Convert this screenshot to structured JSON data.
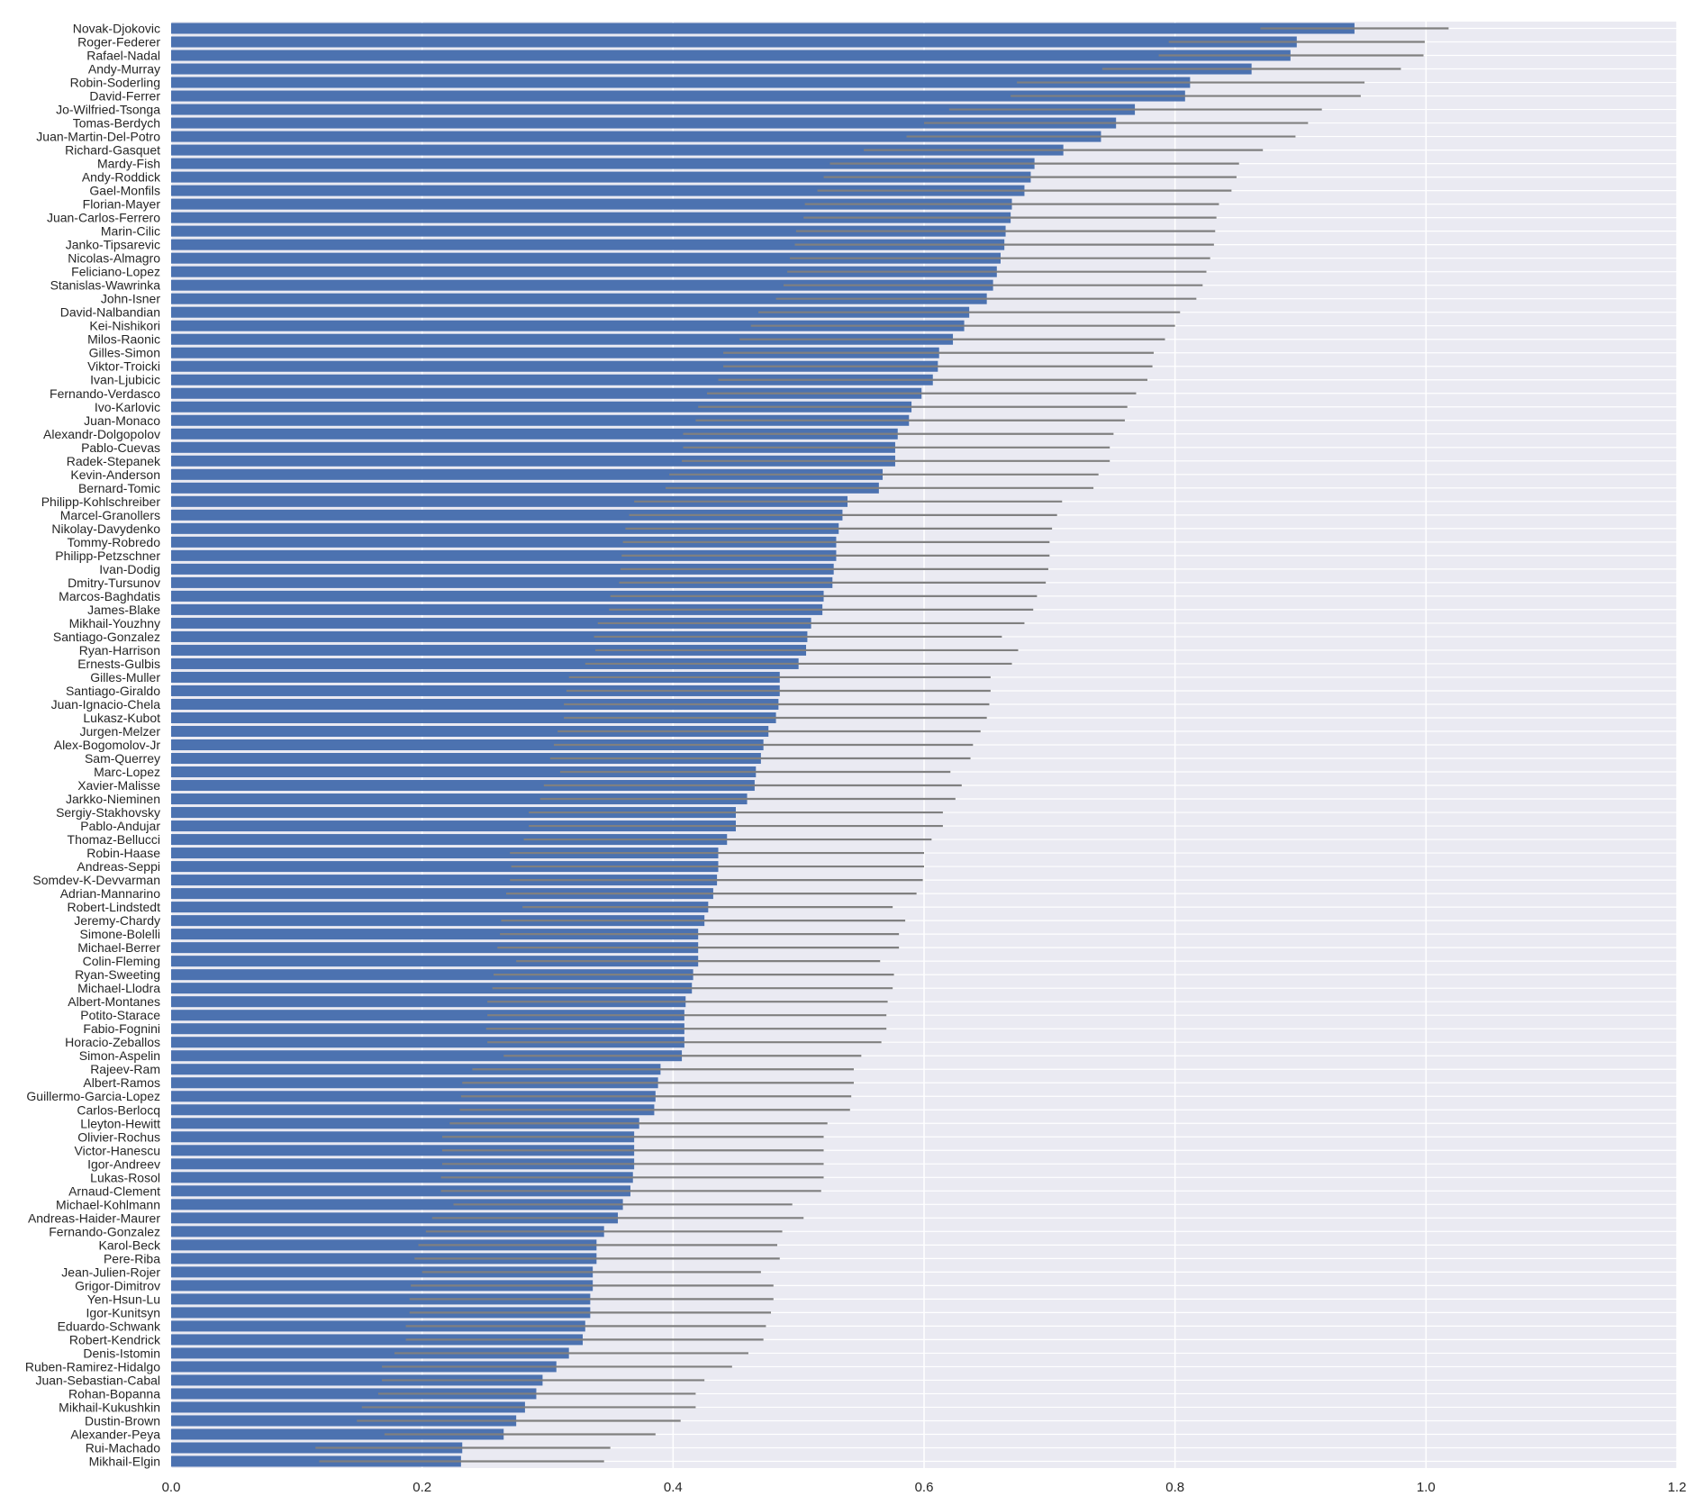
{
  "chart_data": {
    "type": "bar",
    "orientation": "horizontal",
    "title": "",
    "xlabel": "",
    "ylabel": "",
    "xlim": [
      0.0,
      1.2
    ],
    "xticks": [
      "0.0",
      "0.2",
      "0.4",
      "0.6",
      "0.8",
      "1.0",
      "1.2"
    ],
    "grid": true,
    "legend": "none",
    "colors": {
      "bar": "#4c72b0",
      "errorbar": "#808080",
      "background": "#eaeaf2",
      "grid": "#ffffff"
    },
    "categories": [
      "Novak-Djokovic",
      "Roger-Federer",
      "Rafael-Nadal",
      "Andy-Murray",
      "Robin-Soderling",
      "David-Ferrer",
      "Jo-Wilfried-Tsonga",
      "Tomas-Berdych",
      "Juan-Martin-Del-Potro",
      "Richard-Gasquet",
      "Mardy-Fish",
      "Andy-Roddick",
      "Gael-Monfils",
      "Florian-Mayer",
      "Juan-Carlos-Ferrero",
      "Marin-Cilic",
      "Janko-Tipsarevic",
      "Nicolas-Almagro",
      "Feliciano-Lopez",
      "Stanislas-Wawrinka",
      "John-Isner",
      "David-Nalbandian",
      "Kei-Nishikori",
      "Milos-Raonic",
      "Gilles-Simon",
      "Viktor-Troicki",
      "Ivan-Ljubicic",
      "Fernando-Verdasco",
      "Ivo-Karlovic",
      "Juan-Monaco",
      "Alexandr-Dolgopolov",
      "Pablo-Cuevas",
      "Radek-Stepanek",
      "Kevin-Anderson",
      "Bernard-Tomic",
      "Philipp-Kohlschreiber",
      "Marcel-Granollers",
      "Nikolay-Davydenko",
      "Tommy-Robredo",
      "Philipp-Petzschner",
      "Ivan-Dodig",
      "Dmitry-Tursunov",
      "Marcos-Baghdatis",
      "James-Blake",
      "Mikhail-Youzhny",
      "Santiago-Gonzalez",
      "Ryan-Harrison",
      "Ernests-Gulbis",
      "Gilles-Muller",
      "Santiago-Giraldo",
      "Juan-Ignacio-Chela",
      "Lukasz-Kubot",
      "Jurgen-Melzer",
      "Alex-Bogomolov-Jr",
      "Sam-Querrey",
      "Marc-Lopez",
      "Xavier-Malisse",
      "Jarkko-Nieminen",
      "Sergiy-Stakhovsky",
      "Pablo-Andujar",
      "Thomaz-Bellucci",
      "Robin-Haase",
      "Andreas-Seppi",
      "Somdev-K-Devvarman",
      "Adrian-Mannarino",
      "Robert-Lindstedt",
      "Jeremy-Chardy",
      "Simone-Bolelli",
      "Michael-Berrer",
      "Colin-Fleming",
      "Ryan-Sweeting",
      "Michael-Llodra",
      "Albert-Montanes",
      "Potito-Starace",
      "Fabio-Fognini",
      "Horacio-Zeballos",
      "Simon-Aspelin",
      "Rajeev-Ram",
      "Albert-Ramos",
      "Guillermo-Garcia-Lopez",
      "Carlos-Berlocq",
      "Lleyton-Hewitt",
      "Olivier-Rochus",
      "Victor-Hanescu",
      "Igor-Andreev",
      "Lukas-Rosol",
      "Arnaud-Clement",
      "Michael-Kohlmann",
      "Andreas-Haider-Maurer",
      "Fernando-Gonzalez",
      "Karol-Beck",
      "Pere-Riba",
      "Jean-Julien-Rojer",
      "Grigor-Dimitrov",
      "Yen-Hsun-Lu",
      "Igor-Kunitsyn",
      "Eduardo-Schwank",
      "Robert-Kendrick",
      "Denis-Istomin",
      "Ruben-Ramirez-Hidalgo",
      "Juan-Sebastian-Cabal",
      "Rohan-Bopanna",
      "Mikhail-Kukushkin",
      "Dustin-Brown",
      "Alexander-Peya",
      "Rui-Machado",
      "Mikhail-Elgin"
    ],
    "values": [
      0.943,
      0.897,
      0.892,
      0.861,
      0.812,
      0.808,
      0.768,
      0.753,
      0.741,
      0.711,
      0.688,
      0.685,
      0.68,
      0.67,
      0.669,
      0.665,
      0.664,
      0.661,
      0.658,
      0.655,
      0.65,
      0.636,
      0.632,
      0.623,
      0.612,
      0.611,
      0.607,
      0.598,
      0.59,
      0.588,
      0.579,
      0.577,
      0.577,
      0.567,
      0.564,
      0.539,
      0.535,
      0.532,
      0.53,
      0.53,
      0.528,
      0.527,
      0.52,
      0.519,
      0.51,
      0.507,
      0.506,
      0.5,
      0.485,
      0.485,
      0.484,
      0.482,
      0.476,
      0.472,
      0.47,
      0.466,
      0.465,
      0.459,
      0.45,
      0.45,
      0.443,
      0.436,
      0.436,
      0.435,
      0.432,
      0.428,
      0.425,
      0.42,
      0.42,
      0.42,
      0.416,
      0.415,
      0.41,
      0.409,
      0.409,
      0.409,
      0.407,
      0.39,
      0.388,
      0.386,
      0.385,
      0.373,
      0.369,
      0.369,
      0.369,
      0.368,
      0.366,
      0.36,
      0.356,
      0.345,
      0.339,
      0.339,
      0.336,
      0.336,
      0.334,
      0.334,
      0.33,
      0.328,
      0.317,
      0.307,
      0.296,
      0.291,
      0.282,
      0.275,
      0.265,
      0.232,
      0.231
    ],
    "error_low": [
      0.868,
      0.795,
      0.787,
      0.742,
      0.674,
      0.669,
      0.62,
      0.6,
      0.586,
      0.552,
      0.525,
      0.52,
      0.515,
      0.505,
      0.504,
      0.498,
      0.497,
      0.493,
      0.491,
      0.488,
      0.482,
      0.468,
      0.462,
      0.453,
      0.44,
      0.44,
      0.436,
      0.427,
      0.42,
      0.418,
      0.408,
      0.408,
      0.407,
      0.397,
      0.394,
      0.369,
      0.365,
      0.362,
      0.36,
      0.359,
      0.358,
      0.357,
      0.35,
      0.349,
      0.34,
      0.337,
      0.338,
      0.33,
      0.317,
      0.315,
      0.313,
      0.313,
      0.308,
      0.305,
      0.302,
      0.31,
      0.297,
      0.294,
      0.285,
      0.285,
      0.281,
      0.27,
      0.271,
      0.27,
      0.267,
      0.28,
      0.263,
      0.262,
      0.26,
      0.275,
      0.257,
      0.256,
      0.252,
      0.252,
      0.251,
      0.252,
      0.265,
      0.24,
      0.232,
      0.231,
      0.23,
      0.222,
      0.216,
      0.216,
      0.216,
      0.215,
      0.215,
      0.225,
      0.208,
      0.203,
      0.197,
      0.194,
      0.2,
      0.191,
      0.19,
      0.19,
      0.187,
      0.187,
      0.178,
      0.168,
      0.168,
      0.165,
      0.152,
      0.148,
      0.17,
      0.115,
      0.118
    ],
    "error_high": [
      1.018,
      0.999,
      0.998,
      0.98,
      0.951,
      0.948,
      0.917,
      0.906,
      0.896,
      0.87,
      0.851,
      0.849,
      0.845,
      0.835,
      0.833,
      0.832,
      0.831,
      0.828,
      0.825,
      0.822,
      0.817,
      0.804,
      0.8,
      0.792,
      0.783,
      0.782,
      0.778,
      0.769,
      0.762,
      0.76,
      0.751,
      0.748,
      0.748,
      0.739,
      0.735,
      0.71,
      0.706,
      0.702,
      0.7,
      0.7,
      0.699,
      0.697,
      0.69,
      0.687,
      0.68,
      0.662,
      0.675,
      0.67,
      0.653,
      0.653,
      0.652,
      0.65,
      0.645,
      0.639,
      0.637,
      0.621,
      0.63,
      0.625,
      0.615,
      0.615,
      0.606,
      0.6,
      0.6,
      0.599,
      0.594,
      0.575,
      0.585,
      0.58,
      0.58,
      0.565,
      0.576,
      0.575,
      0.571,
      0.57,
      0.57,
      0.566,
      0.55,
      0.544,
      0.544,
      0.542,
      0.541,
      0.523,
      0.52,
      0.52,
      0.52,
      0.52,
      0.518,
      0.495,
      0.504,
      0.487,
      0.483,
      0.485,
      0.47,
      0.48,
      0.48,
      0.478,
      0.474,
      0.472,
      0.46,
      0.447,
      0.425,
      0.418,
      0.418,
      0.406,
      0.386,
      0.35,
      0.345
    ]
  }
}
